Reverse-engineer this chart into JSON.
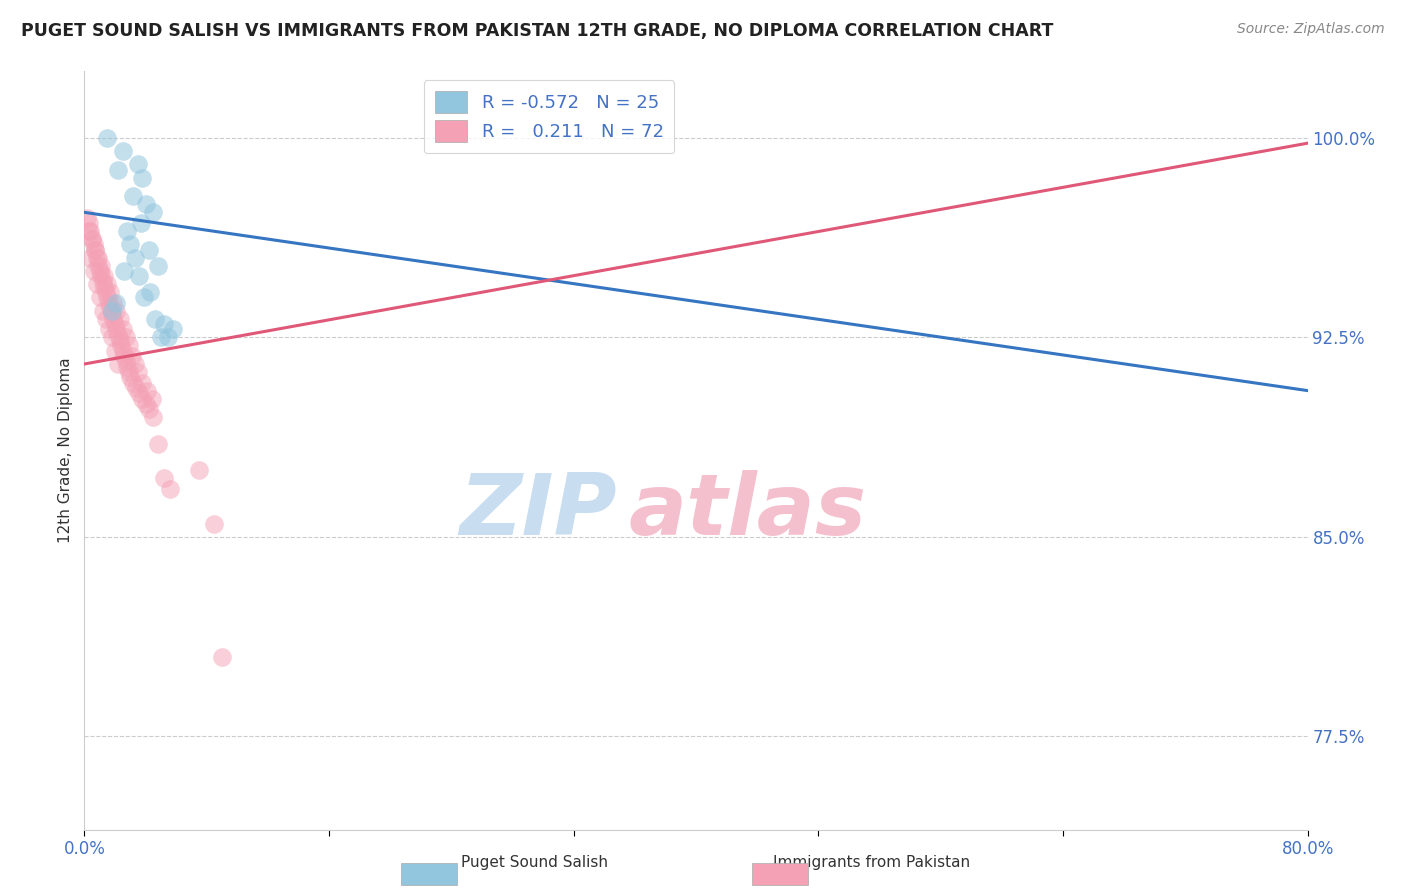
{
  "title": "PUGET SOUND SALISH VS IMMIGRANTS FROM PAKISTAN 12TH GRADE, NO DIPLOMA CORRELATION CHART",
  "source_text": "Source: ZipAtlas.com",
  "ylabel": "12th Grade, No Diploma",
  "xlim": [
    0.0,
    80.0
  ],
  "ylim": [
    74.0,
    102.5
  ],
  "yticks": [
    77.5,
    85.0,
    92.5,
    100.0
  ],
  "ytick_labels": [
    "77.5%",
    "85.0%",
    "92.5%",
    "100.0%"
  ],
  "legend_blue_r": "-0.572",
  "legend_blue_n": "25",
  "legend_pink_r": "0.211",
  "legend_pink_n": "72",
  "blue_color": "#92c5de",
  "pink_color": "#f4a0b5",
  "blue_line_color": "#3575c1",
  "pink_line_color": "#e05878",
  "title_color": "#222222",
  "axis_label_color": "#4472c4",
  "source_color": "#888888",
  "blue_scatter_x": [
    1.5,
    2.5,
    2.2,
    3.5,
    3.8,
    3.2,
    4.0,
    3.7,
    4.5,
    2.8,
    3.0,
    4.2,
    3.3,
    4.8,
    2.6,
    3.6,
    5.5,
    4.3,
    3.9,
    2.1,
    1.8,
    4.6,
    5.2,
    5.8,
    5.0
  ],
  "blue_scatter_y": [
    100.0,
    99.5,
    98.8,
    99.0,
    98.5,
    97.8,
    97.5,
    96.8,
    97.2,
    96.5,
    96.0,
    95.8,
    95.5,
    95.2,
    95.0,
    94.8,
    92.5,
    94.2,
    94.0,
    93.8,
    93.5,
    93.2,
    93.0,
    92.8,
    92.5
  ],
  "pink_scatter_x": [
    0.2,
    0.3,
    0.4,
    0.5,
    0.6,
    0.7,
    0.8,
    0.9,
    1.0,
    1.1,
    1.2,
    1.3,
    1.4,
    1.5,
    1.6,
    1.7,
    1.8,
    1.9,
    2.0,
    2.1,
    2.2,
    2.3,
    2.4,
    2.5,
    2.6,
    2.7,
    2.8,
    2.9,
    3.0,
    3.2,
    3.4,
    3.6,
    3.8,
    4.0,
    4.2,
    4.5,
    0.3,
    0.5,
    0.7,
    0.9,
    1.1,
    1.3,
    1.5,
    1.7,
    1.9,
    2.1,
    2.3,
    2.5,
    2.7,
    2.9,
    3.1,
    3.3,
    3.5,
    3.8,
    4.1,
    4.4,
    0.4,
    0.6,
    0.8,
    1.0,
    7.5,
    4.8,
    5.2,
    5.6,
    1.2,
    1.4,
    1.6,
    1.8,
    2.0,
    8.5,
    9.0,
    2.2
  ],
  "pink_scatter_y": [
    97.0,
    96.8,
    96.5,
    96.2,
    96.0,
    95.8,
    95.5,
    95.2,
    95.0,
    94.8,
    94.6,
    94.4,
    94.2,
    94.0,
    93.8,
    93.6,
    93.4,
    93.2,
    93.0,
    92.8,
    92.6,
    92.4,
    92.2,
    92.0,
    91.8,
    91.6,
    91.4,
    91.2,
    91.0,
    90.8,
    90.6,
    90.4,
    90.2,
    90.0,
    89.8,
    89.5,
    96.5,
    96.2,
    95.8,
    95.5,
    95.2,
    94.8,
    94.5,
    94.2,
    93.8,
    93.5,
    93.2,
    92.8,
    92.5,
    92.2,
    91.8,
    91.5,
    91.2,
    90.8,
    90.5,
    90.2,
    95.5,
    95.0,
    94.5,
    94.0,
    87.5,
    88.5,
    87.2,
    86.8,
    93.5,
    93.2,
    92.8,
    92.5,
    92.0,
    85.5,
    80.5,
    91.5
  ],
  "blue_line_x0": 0.0,
  "blue_line_y0": 97.2,
  "blue_line_x1": 80.0,
  "blue_line_y1": 90.5,
  "pink_line_x0": 0.0,
  "pink_line_y0": 91.5,
  "pink_line_x1": 80.0,
  "pink_line_y1": 99.8,
  "background_color": "#ffffff",
  "watermark_zip_color": "#c8ddf0",
  "watermark_atlas_color": "#f5c0ce"
}
